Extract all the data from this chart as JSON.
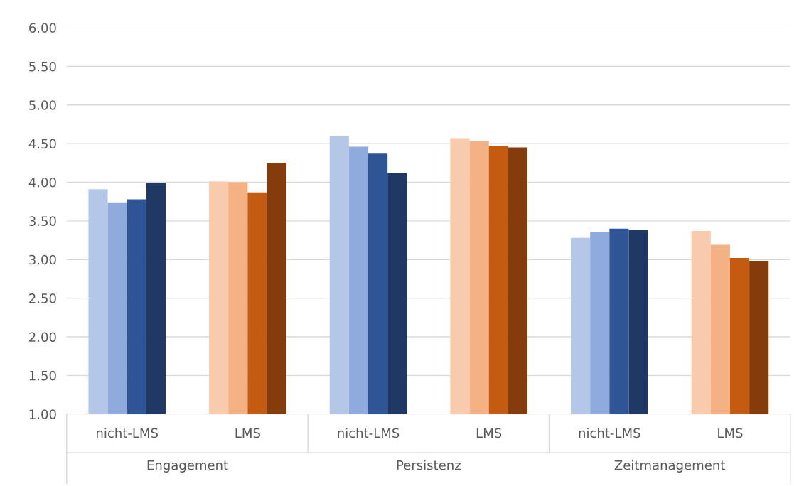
{
  "chart_data": {
    "type": "bar",
    "categories": [
      "nicht-LMS",
      "LMS",
      "nicht-LMS",
      "LMS",
      "nicht-LMS",
      "LMS"
    ],
    "series": [
      {
        "values": [
          3.91,
          4.01,
          4.6,
          4.57,
          3.28,
          3.37
        ],
        "colors": [
          "#b4c7e7",
          "#f8cbad",
          "#b4c7e7",
          "#f8cbad",
          "#b4c7e7",
          "#f8cbad"
        ]
      },
      {
        "values": [
          3.73,
          4.0,
          4.46,
          4.53,
          3.36,
          3.19
        ],
        "colors": [
          "#8faadc",
          "#f4b183",
          "#8faadc",
          "#f4b183",
          "#8faadc",
          "#f4b183"
        ]
      },
      {
        "values": [
          3.78,
          3.87,
          4.37,
          4.47,
          3.4,
          3.02
        ],
        "colors": [
          "#2f5597",
          "#c55a11",
          "#2f5597",
          "#c55a11",
          "#2f5597",
          "#c55a11"
        ]
      },
      {
        "values": [
          3.99,
          4.25,
          4.12,
          4.45,
          3.38,
          2.98
        ],
        "colors": [
          "#203864",
          "#843c0c",
          "#203864",
          "#843c0c",
          "#203864",
          "#843c0c"
        ]
      }
    ],
    "annotations": [
      "Engagement",
      "Persistenz",
      "Zeitmanagement"
    ],
    "ylim": [
      1,
      6
    ],
    "yticks": [
      {
        "value": 1,
        "label": "1.00"
      },
      {
        "value": 1.5,
        "label": "1.50"
      },
      {
        "value": 2,
        "label": "2.00"
      },
      {
        "value": 2.5,
        "label": "2.50"
      },
      {
        "value": 3,
        "label": "3.00"
      },
      {
        "value": 3.5,
        "label": "3.50"
      },
      {
        "value": 4,
        "label": "4.00"
      },
      {
        "value": 4.5,
        "label": "4.50"
      },
      {
        "value": 5,
        "label": "5.00"
      },
      {
        "value": 5.5,
        "label": "5.50"
      },
      {
        "value": 6,
        "label": "6.00"
      }
    ],
    "grid": "y",
    "legend": false
  }
}
